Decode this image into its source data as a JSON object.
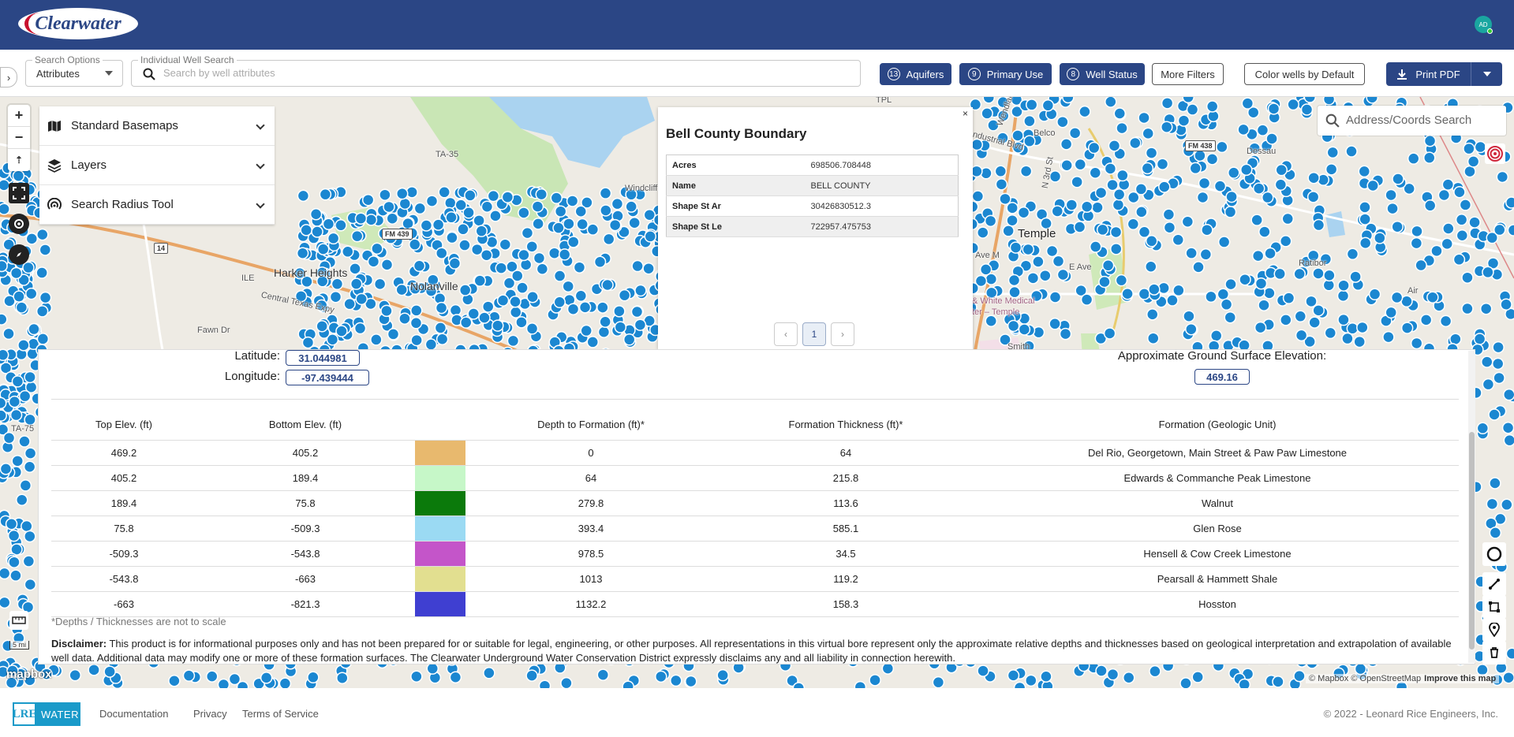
{
  "app": {
    "logo_text": "Clearwater",
    "avatar_initials": "AD"
  },
  "search": {
    "options_legend": "Search Options",
    "options_value": "Attributes",
    "well_legend": "Individual Well Search",
    "well_placeholder": "Search by well attributes"
  },
  "filters": [
    {
      "count": "13",
      "label": "Aquifers"
    },
    {
      "count": "9",
      "label": "Primary Use"
    },
    {
      "count": "8",
      "label": "Well Status"
    }
  ],
  "buttons": {
    "more_filters": "More Filters",
    "color_wells": "Color wells by Default",
    "print_pdf": "Print PDF"
  },
  "map_panel": {
    "items": [
      {
        "label": "Standard Basemaps",
        "icon": "map-icon"
      },
      {
        "label": "Layers",
        "icon": "layers-icon"
      },
      {
        "label": "Search Radius Tool",
        "icon": "radius-icon"
      }
    ]
  },
  "map_labels": {
    "ta35": "TA-35",
    "fm439": "FM 439",
    "i14": "14",
    "ile": "ILE",
    "harker": "Harker Heights",
    "nolanville": "Nolanville",
    "central_tx": "Central Texas Expy",
    "fawn": "Fawn Dr",
    "ta75": "TA-75",
    "belco": "Belco",
    "fm438": "FM 438",
    "temple": "Temple",
    "avem": "Ave M",
    "eave": "E Ave",
    "ratibor": "Ratibor",
    "bsw": "& White Medical",
    "temple2": "ter – Temple",
    "smith": "Smith",
    "tpl": "TPL",
    "wendlan": "Wendlan",
    "third": "N 3rd St",
    "ndustrial": "ndustrial Blvd",
    "dessau": "Dessau",
    "air": "Air",
    "windcliff": "Windcliff"
  },
  "popup": {
    "title": "Bell County Boundary",
    "rows": [
      {
        "key": "Acres",
        "value": "698506.708448"
      },
      {
        "key": "Name",
        "value": "BELL COUNTY"
      },
      {
        "key": "Shape St Ar",
        "value": "30426830512.3"
      },
      {
        "key": "Shape St Le",
        "value": "722957.475753"
      }
    ],
    "page": "1"
  },
  "address_search": {
    "placeholder": "Address/Coords Search"
  },
  "bore": {
    "latitude_label": "Latitude:",
    "latitude": "31.044981",
    "longitude_label": "Longitude:",
    "longitude": "-97.439444",
    "elevation_label": "Approximate Ground Surface Elevation:",
    "elevation": "469.16",
    "headers": [
      "Top Elev. (ft)",
      "Bottom Elev. (ft)",
      "",
      "Depth to Formation (ft)*",
      "Formation Thickness (ft)*",
      "Formation (Geologic Unit)"
    ],
    "rows": [
      {
        "top": "469.2",
        "bottom": "405.2",
        "color": "#e8b96e",
        "depth": "0",
        "thick": "64",
        "name": "Del Rio, Georgetown, Main Street & Paw Paw Limestone"
      },
      {
        "top": "405.2",
        "bottom": "189.4",
        "color": "#c6f7c8",
        "depth": "64",
        "thick": "215.8",
        "name": "Edwards & Commanche Peak Limestone"
      },
      {
        "top": "189.4",
        "bottom": "75.8",
        "color": "#0b7a0b",
        "depth": "279.8",
        "thick": "113.6",
        "name": "Walnut"
      },
      {
        "top": "75.8",
        "bottom": "-509.3",
        "color": "#9bdaf3",
        "depth": "393.4",
        "thick": "585.1",
        "name": "Glen Rose"
      },
      {
        "top": "-509.3",
        "bottom": "-543.8",
        "color": "#c455c9",
        "depth": "978.5",
        "thick": "34.5",
        "name": "Hensell & Cow Creek Limestone"
      },
      {
        "top": "-543.8",
        "bottom": "-663",
        "color": "#e2df90",
        "depth": "1013",
        "thick": "119.2",
        "name": "Pearsall & Hammett Shale"
      },
      {
        "top": "-663",
        "bottom": "-821.3",
        "color": "#3f3fd1",
        "depth": "1132.2",
        "thick": "158.3",
        "name": "Hosston"
      }
    ],
    "note": "*Depths / Thicknesses are not to scale",
    "disclaimer_label": "Disclaimer:",
    "disclaimer": " This product is for informational purposes only and has not been prepared for or suitable for legal, engineering, or other purposes. All representations in this virtual bore represent only the approximate relative depths and thicknesses based on geological interpretation and extrapolation of available well data. Additional data may modify one or more of these formation surfaces. The Clearwater Underground Water Conservation District expressly disclaims any and all liability in connection herewith."
  },
  "map_misc": {
    "scale": "5 mi",
    "mapbox": "mapbox",
    "attribution": "© Mapbox © OpenStreetMap",
    "improve": "Improve this map"
  },
  "footer": {
    "lre": "LRE",
    "water": "WATER",
    "links": [
      "Documentation",
      "Privacy",
      "Terms of Service"
    ],
    "copyright": "© 2022 - Leonard Rice Engineers, Inc."
  },
  "colors": {
    "brand": "#2b4685",
    "well": "#1b87d1"
  }
}
